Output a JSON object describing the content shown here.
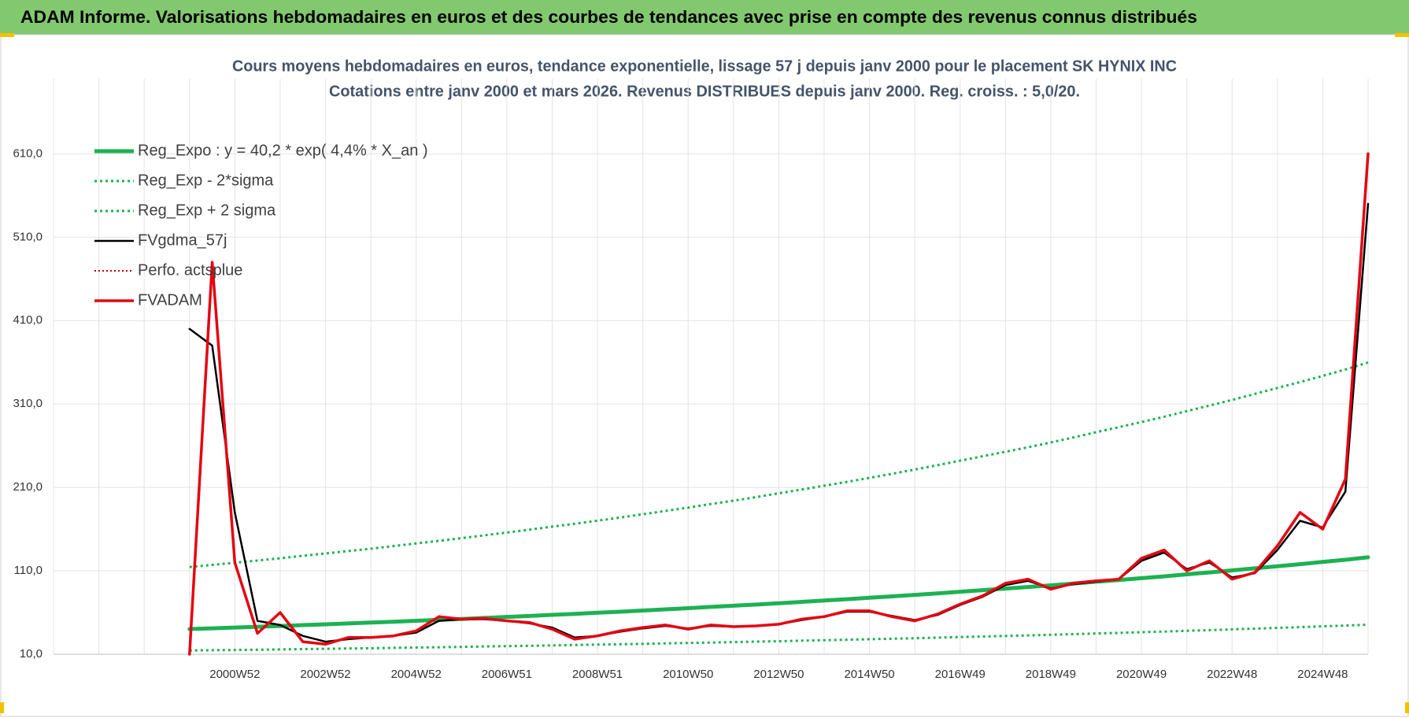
{
  "header": {
    "title": "ADAM Informe. Valorisations hebdomadaires en euros et des courbes de tendances avec prise en compte des revenus connus distribués"
  },
  "chart_data": {
    "type": "line",
    "title": "Cours moyens hebdomadaires en euros, tendance exponentielle, lissage 57 j depuis janv 2000 pour le placement SK HYNIX INC",
    "subtitle": "Cotations entre janv 2000 et mars 2026. Revenus DISTRIBUES depuis janv 2000. Reg. croiss. : 5,0/20.",
    "categories": [
      null,
      null,
      null,
      null,
      null,
      null,
      null,
      null,
      "2000W52",
      null,
      null,
      null,
      "2002W52",
      null,
      null,
      null,
      "2004W52",
      null,
      null,
      null,
      "2006W51",
      null,
      null,
      null,
      "2008W51",
      null,
      null,
      null,
      "2010W50",
      null,
      null,
      null,
      "2012W50",
      null,
      null,
      null,
      "2014W50",
      null,
      null,
      null,
      "2016W49",
      null,
      null,
      null,
      "2018W49",
      null,
      null,
      null,
      "2020W49",
      null,
      null,
      null,
      "2022W48",
      null,
      null,
      null,
      "2024W48",
      null,
      null
    ],
    "ylim": [
      10,
      700
    ],
    "yticks": [
      {
        "value": 10,
        "label": "10,0"
      },
      {
        "value": 110,
        "label": "110,0"
      },
      {
        "value": 210,
        "label": "210,0"
      },
      {
        "value": 310,
        "label": "310,0"
      },
      {
        "value": 410,
        "label": "410,0"
      },
      {
        "value": 510,
        "label": "510,0"
      },
      {
        "value": 610,
        "label": "610,0"
      }
    ],
    "grid": true,
    "legend": "top-left",
    "series": [
      {
        "name": "Reg_Expo : y = 40,2 * exp( 4,4% *  X_an )",
        "color": "#1db152",
        "style": "solid",
        "width": 5,
        "values": [
          null,
          null,
          null,
          null,
          null,
          null,
          40.2,
          41.1,
          42.0,
          42.9,
          43.9,
          44.9,
          45.9,
          46.9,
          47.9,
          49.0,
          50.1,
          51.2,
          52.3,
          53.5,
          54.7,
          55.9,
          57.2,
          58.4,
          59.7,
          61.0,
          62.4,
          63.8,
          65.2,
          66.7,
          68.1,
          69.6,
          71.2,
          72.8,
          74.4,
          76.0,
          77.7,
          79.4,
          81.2,
          83.0,
          84.9,
          86.8,
          88.7,
          90.6,
          92.6,
          94.7,
          96.9,
          99.0,
          101.2,
          103.4,
          105.8,
          108.1,
          110.5,
          113.0,
          115.5,
          118.0,
          120.6,
          123.3,
          126.2
        ]
      },
      {
        "name": "Reg_Exp - 2*sigma",
        "color": "#1db152",
        "style": "dotted",
        "width": 3,
        "values": [
          null,
          null,
          null,
          null,
          null,
          null,
          14.5,
          14.8,
          15.1,
          15.4,
          15.8,
          16.2,
          16.5,
          16.9,
          17.2,
          17.6,
          18.0,
          18.4,
          18.8,
          19.3,
          19.7,
          20.1,
          20.6,
          21.0,
          21.5,
          22.0,
          22.5,
          23.0,
          23.5,
          24.0,
          24.5,
          25.1,
          25.6,
          26.2,
          26.8,
          27.4,
          28.0,
          28.6,
          29.2,
          29.9,
          30.6,
          31.2,
          31.9,
          32.6,
          33.3,
          34.1,
          34.9,
          35.6,
          36.4,
          37.2,
          38.1,
          38.9,
          39.8,
          40.7,
          41.6,
          42.5,
          43.4,
          44.4,
          45.4
        ]
      },
      {
        "name": "Reg_Exp + 2 sigma",
        "color": "#1db152",
        "style": "dotted",
        "width": 3,
        "values": [
          null,
          null,
          null,
          null,
          null,
          null,
          114.6,
          117.1,
          119.7,
          122.3,
          125.1,
          128.0,
          130.8,
          133.7,
          136.5,
          139.7,
          142.8,
          145.9,
          149.1,
          152.5,
          155.9,
          159.3,
          163.0,
          166.4,
          170.1,
          173.9,
          177.8,
          181.8,
          185.8,
          190.1,
          194.1,
          198.4,
          202.9,
          207.5,
          212.0,
          216.6,
          221.4,
          226.3,
          231.4,
          236.6,
          242.0,
          247.4,
          252.8,
          258.2,
          263.9,
          269.9,
          276.2,
          282.2,
          288.4,
          294.7,
          301.5,
          308.1,
          314.9,
          322.1,
          329.2,
          336.3,
          343.7,
          351.4,
          359.7
        ]
      },
      {
        "name": "FVgdma_57j",
        "color": "#000000",
        "style": "solid",
        "width": 2.5,
        "values": [
          null,
          null,
          null,
          null,
          null,
          null,
          400,
          380,
          180,
          50,
          45,
          32,
          25,
          28,
          30,
          32,
          36,
          50,
          52,
          52,
          50,
          47,
          42,
          30,
          32,
          37,
          41,
          44,
          41,
          44,
          43,
          44,
          46,
          51,
          55,
          61,
          61,
          56,
          51,
          57,
          69,
          79,
          93,
          98,
          89,
          94,
          97,
          100,
          122,
          132,
          112,
          120,
          102,
          107,
          135,
          170,
          162,
          205,
          550
        ]
      },
      {
        "name": "Perfo. actsplue",
        "color": "#c00000",
        "style": "dotted",
        "width": 2,
        "values": [
          null,
          null,
          null,
          null,
          null,
          null,
          null,
          null,
          null,
          null,
          null,
          null,
          null,
          null,
          null,
          null,
          null,
          null,
          null,
          null,
          null,
          null,
          null,
          null,
          null,
          null,
          null,
          null,
          null,
          null,
          null,
          null,
          null,
          null,
          null,
          null,
          null,
          null,
          null,
          null,
          null,
          null,
          null,
          null,
          null,
          null,
          null,
          null,
          null,
          null,
          null,
          null,
          null,
          null,
          null,
          null,
          null,
          null,
          null
        ]
      },
      {
        "name": "FVADAM",
        "color": "#e30613",
        "style": "solid",
        "width": 3.5,
        "values": [
          null,
          null,
          null,
          null,
          null,
          null,
          10,
          480,
          120,
          35,
          60,
          25,
          22,
          30,
          30,
          32,
          38,
          55,
          52,
          53,
          50,
          48,
          40,
          28,
          32,
          38,
          42,
          45,
          40,
          45,
          43,
          44,
          46,
          52,
          55,
          62,
          62,
          55,
          50,
          58,
          70,
          80,
          95,
          100,
          88,
          95,
          98,
          100,
          125,
          135,
          110,
          122,
          100,
          108,
          140,
          180,
          160,
          220,
          610
        ]
      }
    ]
  }
}
